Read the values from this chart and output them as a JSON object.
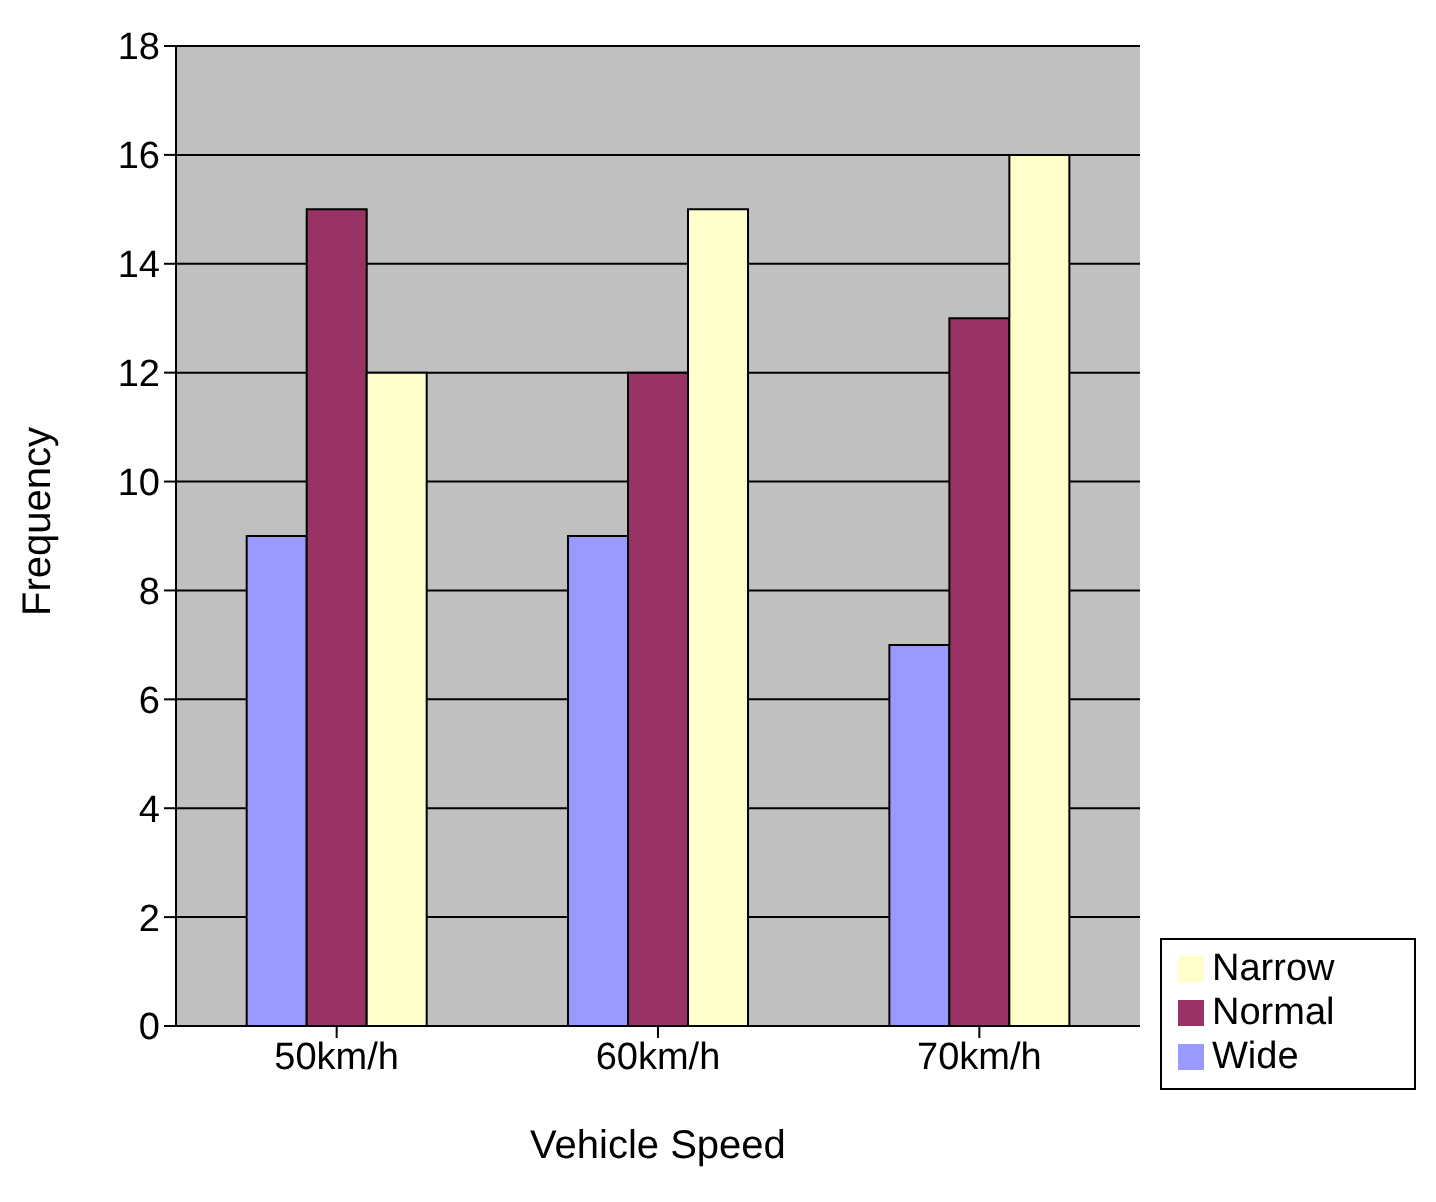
{
  "chart_data": {
    "type": "bar",
    "xlabel": "Vehicle Speed",
    "ylabel": "Frequency",
    "categories": [
      "50km/h",
      "60km/h",
      "70km/h"
    ],
    "series": [
      {
        "name": "Wide",
        "color": "#9999ff",
        "values": [
          9,
          9,
          7
        ]
      },
      {
        "name": "Normal",
        "color": "#993366",
        "values": [
          15,
          12,
          13
        ]
      },
      {
        "name": "Narrow",
        "color": "#ffffcc",
        "values": [
          12,
          15,
          16
        ]
      }
    ],
    "ylim": [
      0,
      18
    ],
    "yticks": [
      0,
      2,
      4,
      6,
      8,
      10,
      12,
      14,
      16,
      18
    ],
    "grid": "y",
    "legend": "bottom right"
  }
}
